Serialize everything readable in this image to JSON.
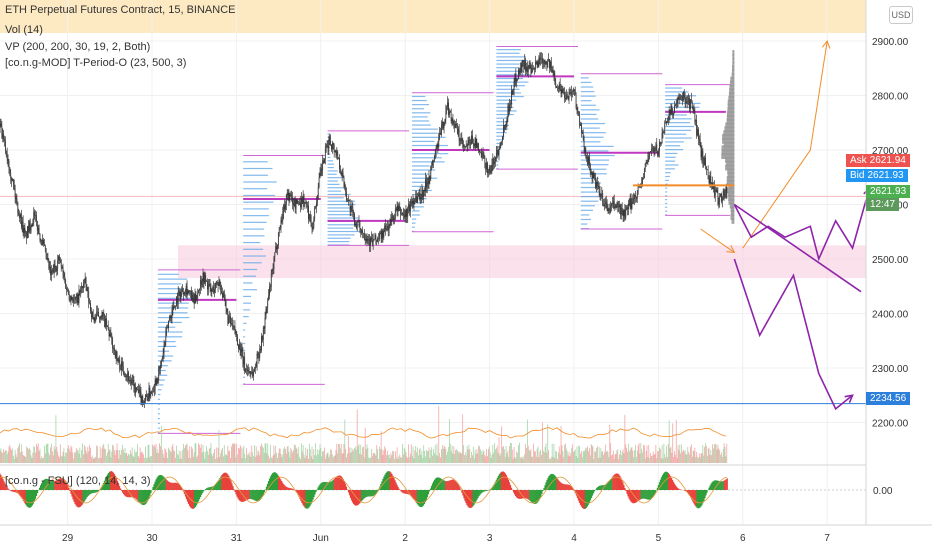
{
  "legend": {
    "symbol": "ETH Perpetual Futures Contract, 15, BINANCE",
    "vol": "Vol (14)",
    "vp": "VP (200, 200, 30, 19, 2, Both)",
    "tperiod": "[co.n.g-MOD] T-Period-O (23, 500, 3)",
    "osc": "[co.n.g - FSU] (120, 14, 14, 3)"
  },
  "currency": "USD",
  "colors": {
    "candle": "#333333",
    "profile": "#5aa3e8",
    "poc": "#c038c0",
    "range": "#d066d6",
    "orange": "#f28c28",
    "forecast": "#8e24aa",
    "support": "#2c7fdb",
    "zone": "#f7c9da",
    "header": "#fde6b8",
    "bull": "#2e9e3a",
    "bear": "#e8413b",
    "ask": "#ef5350",
    "bid": "#2196f3",
    "last": "#4caf50"
  },
  "tags": {
    "ask_label": "Ask",
    "ask_value": "2621.94",
    "bid_label": "Bid",
    "bid_value": "2621.93",
    "last_value": "2621.93",
    "countdown": "12:47",
    "support_value": "2234.56"
  },
  "chart_data": {
    "type": "candlestick",
    "price_axis": {
      "min": 2145,
      "max": 2920,
      "ticks": [
        2900,
        2800,
        2700,
        2600,
        2500,
        2400,
        2300,
        2200
      ],
      "tick_labels": [
        "2900.00",
        "2800.00",
        "2700.00",
        "2600.00",
        "2500.00",
        "2400.00",
        "2300.00",
        "2200.00"
      ]
    },
    "time_axis": {
      "labels": [
        "29",
        "30",
        "31",
        "Jun",
        "2",
        "3",
        "4",
        "5",
        "6",
        "7"
      ],
      "positions": [
        -1.0,
        0.0,
        1.0,
        2.0,
        3.0,
        4.0,
        5.0,
        6.0,
        7.0,
        8.0
      ],
      "start": -1.8,
      "end": 8.4
    },
    "price_path": [
      [
        -1.8,
        2740
      ],
      [
        -1.7,
        2680
      ],
      [
        -1.6,
        2600
      ],
      [
        -1.5,
        2540
      ],
      [
        -1.4,
        2580
      ],
      [
        -1.3,
        2530
      ],
      [
        -1.2,
        2470
      ],
      [
        -1.1,
        2500
      ],
      [
        -1.0,
        2440
      ],
      [
        -0.9,
        2420
      ],
      [
        -0.8,
        2460
      ],
      [
        -0.7,
        2390
      ],
      [
        -0.6,
        2400
      ],
      [
        -0.5,
        2360
      ],
      [
        -0.4,
        2310
      ],
      [
        -0.3,
        2290
      ],
      [
        -0.2,
        2260
      ],
      [
        -0.1,
        2240
      ],
      [
        0.0,
        2260
      ],
      [
        0.1,
        2300
      ],
      [
        0.2,
        2390
      ],
      [
        0.3,
        2430
      ],
      [
        0.4,
        2450
      ],
      [
        0.5,
        2420
      ],
      [
        0.6,
        2470
      ],
      [
        0.7,
        2440
      ],
      [
        0.8,
        2460
      ],
      [
        0.9,
        2390
      ],
      [
        1.0,
        2360
      ],
      [
        1.1,
        2300
      ],
      [
        1.2,
        2290
      ],
      [
        1.3,
        2350
      ],
      [
        1.4,
        2450
      ],
      [
        1.5,
        2550
      ],
      [
        1.6,
        2620
      ],
      [
        1.7,
        2600
      ],
      [
        1.8,
        2610
      ],
      [
        1.9,
        2560
      ],
      [
        2.0,
        2660
      ],
      [
        2.1,
        2720
      ],
      [
        2.2,
        2690
      ],
      [
        2.3,
        2620
      ],
      [
        2.4,
        2570
      ],
      [
        2.5,
        2550
      ],
      [
        2.6,
        2530
      ],
      [
        2.7,
        2540
      ],
      [
        2.8,
        2560
      ],
      [
        2.9,
        2590
      ],
      [
        3.0,
        2580
      ],
      [
        3.1,
        2610
      ],
      [
        3.2,
        2620
      ],
      [
        3.3,
        2660
      ],
      [
        3.4,
        2720
      ],
      [
        3.5,
        2780
      ],
      [
        3.6,
        2740
      ],
      [
        3.7,
        2700
      ],
      [
        3.8,
        2720
      ],
      [
        3.9,
        2690
      ],
      [
        4.0,
        2660
      ],
      [
        4.1,
        2700
      ],
      [
        4.2,
        2760
      ],
      [
        4.3,
        2830
      ],
      [
        4.4,
        2860
      ],
      [
        4.5,
        2840
      ],
      [
        4.6,
        2870
      ],
      [
        4.7,
        2860
      ],
      [
        4.8,
        2820
      ],
      [
        4.9,
        2800
      ],
      [
        5.0,
        2810
      ],
      [
        5.1,
        2720
      ],
      [
        5.2,
        2660
      ],
      [
        5.3,
        2620
      ],
      [
        5.4,
        2590
      ],
      [
        5.5,
        2600
      ],
      [
        5.6,
        2580
      ],
      [
        5.7,
        2610
      ],
      [
        5.8,
        2640
      ],
      [
        5.9,
        2700
      ],
      [
        6.0,
        2700
      ],
      [
        6.1,
        2760
      ],
      [
        6.2,
        2780
      ],
      [
        6.3,
        2800
      ],
      [
        6.4,
        2780
      ],
      [
        6.5,
        2700
      ],
      [
        6.6,
        2650
      ],
      [
        6.7,
        2610
      ],
      [
        6.8,
        2622
      ]
    ],
    "support_line": 2234.56,
    "zone": [
      2465,
      2525
    ],
    "orange_level": [
      5.7,
      6.9,
      2635
    ],
    "sessions": [
      {
        "x0": 0.07,
        "x1": 1.0,
        "poc": 2425,
        "hi": 2480,
        "lo": 2180
      },
      {
        "x0": 1.08,
        "x1": 2.0,
        "poc": 2610,
        "hi": 2690,
        "lo": 2270
      },
      {
        "x0": 2.08,
        "x1": 3.0,
        "poc": 2570,
        "hi": 2735,
        "lo": 2525
      },
      {
        "x0": 3.08,
        "x1": 4.0,
        "poc": 2700,
        "hi": 2805,
        "lo": 2550
      },
      {
        "x0": 4.08,
        "x1": 5.0,
        "poc": 2835,
        "hi": 2890,
        "lo": 2665
      },
      {
        "x0": 5.08,
        "x1": 6.0,
        "poc": 2695,
        "hi": 2840,
        "lo": 2555
      },
      {
        "x0": 6.08,
        "x1": 6.8,
        "poc": 2770,
        "hi": 2820,
        "lo": 2580
      }
    ],
    "forecasts": [
      {
        "color": "orange",
        "arrow": true,
        "points": [
          [
            7.0,
            2520
          ],
          [
            7.8,
            2700
          ],
          [
            8.0,
            2900
          ]
        ]
      },
      {
        "color": "orange",
        "arrow": true,
        "points": [
          [
            6.5,
            2555
          ],
          [
            6.9,
            2512
          ]
        ]
      },
      {
        "color": "forecast",
        "arrow": false,
        "points": [
          [
            6.9,
            2600
          ],
          [
            8.4,
            2440
          ]
        ]
      },
      {
        "color": "forecast",
        "arrow": true,
        "points": [
          [
            6.9,
            2600
          ],
          [
            7.1,
            2540
          ],
          [
            7.3,
            2560
          ],
          [
            7.5,
            2540
          ],
          [
            7.8,
            2560
          ],
          [
            7.9,
            2500
          ],
          [
            8.1,
            2570
          ],
          [
            8.3,
            2520
          ],
          [
            8.5,
            2630
          ]
        ]
      },
      {
        "color": "forecast",
        "arrow": true,
        "points": [
          [
            6.9,
            2500
          ],
          [
            7.2,
            2360
          ],
          [
            7.6,
            2470
          ],
          [
            7.9,
            2290
          ],
          [
            8.1,
            2225
          ],
          [
            8.3,
            2250
          ]
        ]
      }
    ]
  }
}
